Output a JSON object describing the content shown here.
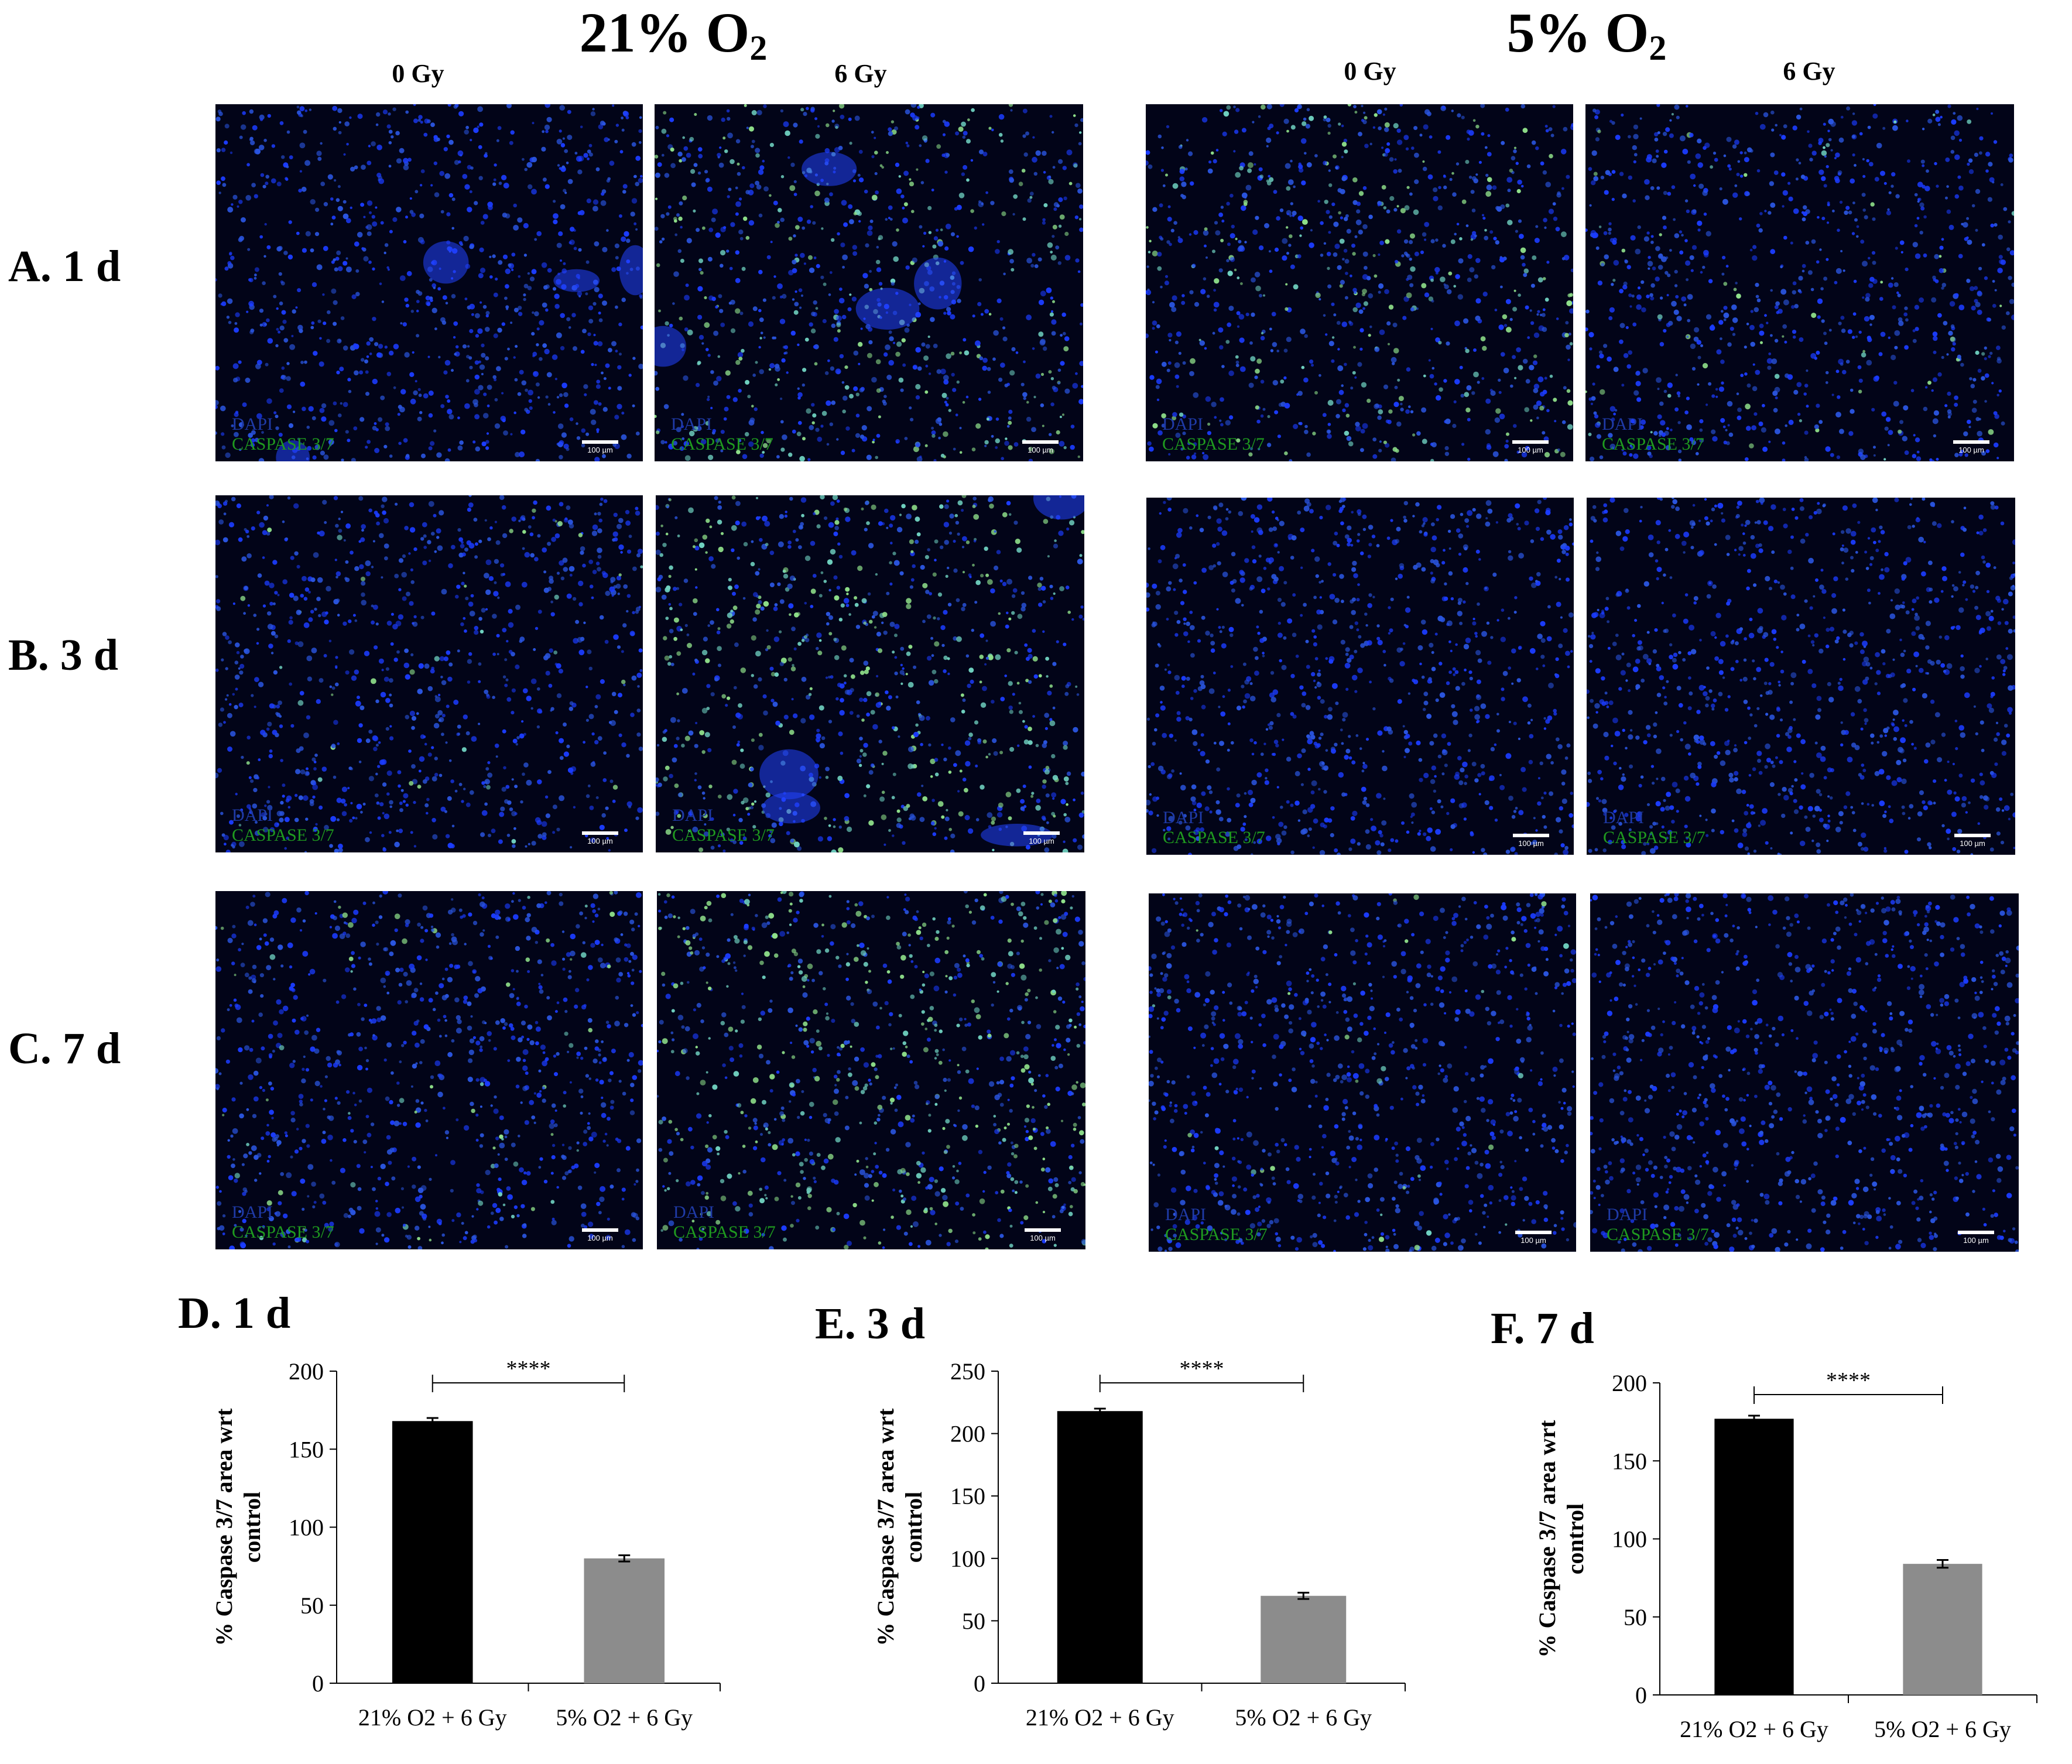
{
  "figure": {
    "conditions": [
      {
        "title_main": "21% O",
        "title_sub": "2",
        "doses": [
          "0 Gy",
          "6 Gy"
        ]
      },
      {
        "title_main": "5% O",
        "title_sub": "2",
        "doses": [
          "0 Gy",
          "6 Gy"
        ]
      }
    ],
    "rows": [
      {
        "label": "A. 1 d"
      },
      {
        "label": "B. 3 d"
      },
      {
        "label": "C. 7 d"
      }
    ],
    "panel_legend": {
      "dapi": "DAPI",
      "caspase": "CASPASE 3/7",
      "scale": "100 µm"
    },
    "colors": {
      "dapi": "#1f3aa6",
      "caspase": "#1f9a1f",
      "bar_21": "#000000",
      "bar_5": "#8c8c8c"
    }
  },
  "chart_data": [
    {
      "type": "bar",
      "title": "D. 1 d",
      "ylabel": "% Caspase 3/7 area wrt control",
      "categories": [
        "21% O2 + 6 Gy",
        "5% O2 + 6 Gy"
      ],
      "values": [
        168,
        80
      ],
      "errors": [
        2,
        2
      ],
      "ylim": [
        0,
        200
      ],
      "yticks": [
        0,
        50,
        100,
        150,
        200
      ],
      "significance": "****"
    },
    {
      "type": "bar",
      "title": "E. 3 d",
      "ylabel": "% Caspase 3/7 area wrt control",
      "categories": [
        "21% O2 + 6 Gy",
        "5% O2 + 6 Gy"
      ],
      "values": [
        218,
        70
      ],
      "errors": [
        2,
        2.5
      ],
      "ylim": [
        0,
        250
      ],
      "yticks": [
        0,
        50,
        100,
        150,
        200,
        250
      ],
      "significance": "****"
    },
    {
      "type": "bar",
      "title": "F. 7 d",
      "ylabel": "% Caspase 3/7 area wrt control",
      "categories": [
        "21% O2 + 6 Gy",
        "5% O2 + 6 Gy"
      ],
      "values": [
        177,
        84
      ],
      "errors": [
        2,
        2.5
      ],
      "ylim": [
        0,
        200
      ],
      "yticks": [
        0,
        50,
        100,
        150,
        200
      ],
      "significance": "****"
    }
  ]
}
